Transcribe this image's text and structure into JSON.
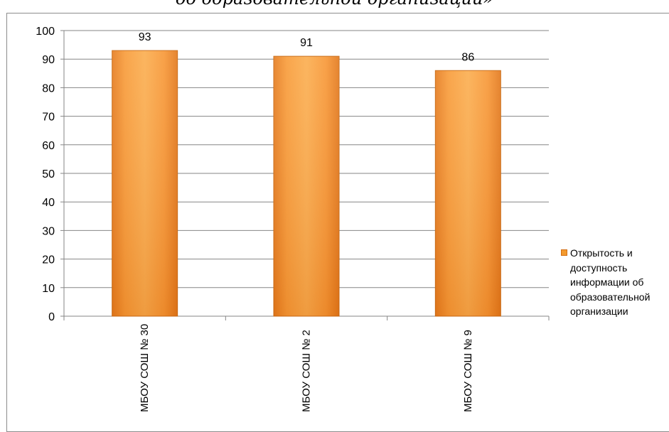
{
  "page": {
    "title": "об образовательной организации»"
  },
  "chart_data": {
    "type": "bar",
    "categories": [
      "МБОУ СОШ № 30",
      "МБОУ СОШ № 2",
      "МБОУ СОШ № 9"
    ],
    "series": [
      {
        "name": "Открытость и доступность информации об образовательной организации",
        "values": [
          93,
          91,
          86
        ],
        "color": "#f39a2e"
      }
    ],
    "data_labels": [
      "93",
      "91",
      "86"
    ],
    "title": "",
    "xlabel": "",
    "ylabel": "",
    "ylim": [
      0,
      100
    ],
    "yticks": [
      0,
      10,
      20,
      30,
      40,
      50,
      60,
      70,
      80,
      90,
      100
    ],
    "ytick_labels": [
      "0",
      "10",
      "20",
      "30",
      "40",
      "50",
      "60",
      "70",
      "80",
      "90",
      "100"
    ],
    "grid": true,
    "legend_position": "right",
    "x_tick_label_rotation": "vertical"
  },
  "legend": {
    "lines": [
      "Открытость и",
      "доступность",
      "информации об",
      "образовательной",
      "организации"
    ]
  }
}
